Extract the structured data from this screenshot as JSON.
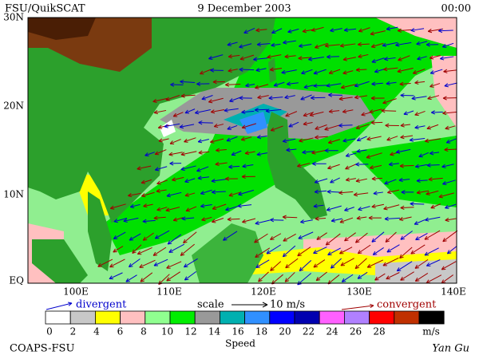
{
  "header": {
    "left": "FSU/QuikSCAT",
    "date": "9 December 2003",
    "time": "00:00"
  },
  "lat_labels": [
    "30N",
    "20N",
    "10N",
    "EQ"
  ],
  "lon_labels": [
    "100E",
    "110E",
    "120E",
    "130E",
    "140E"
  ],
  "legend": {
    "divergent": "divergent",
    "scale": "scale",
    "scale_value": "10 m/s",
    "convergent": "convergent",
    "divergent_color": "#0000cc",
    "convergent_color": "#a00000"
  },
  "colorbar": {
    "labels": [
      0,
      2,
      4,
      6,
      8,
      10,
      12,
      14,
      16,
      18,
      20,
      22,
      24,
      26,
      28
    ],
    "unit": "m/s",
    "title": "Speed",
    "colors": [
      "#ffffff",
      "#c8c8c8",
      "#ffff00",
      "#ffc0c0",
      "#90ff90",
      "#00ee00",
      "#999999",
      "#00b0b0",
      "#3090ff",
      "#0000ff",
      "#0000b0",
      "#ff60ff",
      "#b080ff",
      "#ff0000",
      "#c03000",
      "#000000"
    ]
  },
  "footer": {
    "left": "COAPS-FSU",
    "right": "Yan Gu"
  }
}
